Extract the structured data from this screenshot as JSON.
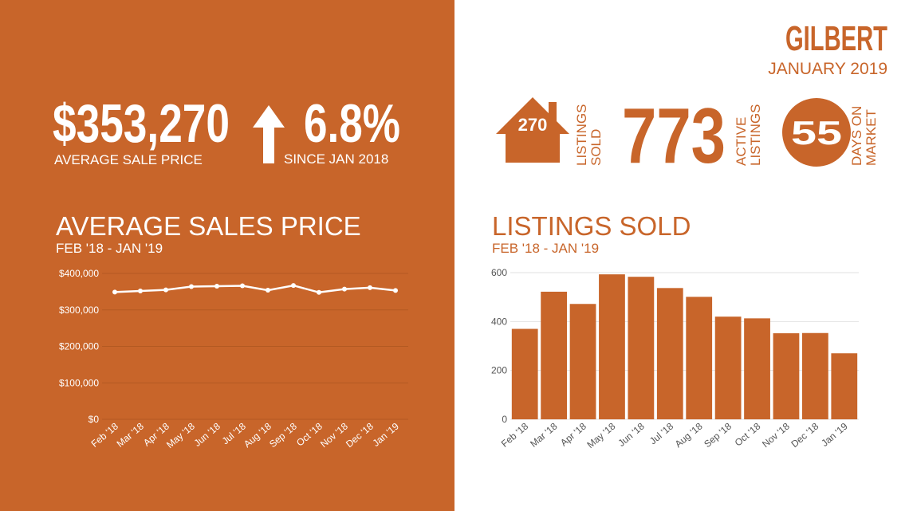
{
  "header": {
    "title": "GILBERT",
    "subtitle": "JANUARY 2019"
  },
  "summary": {
    "price": "$353,270",
    "price_label": "AVERAGE  SALE PRICE",
    "change": "6.8%",
    "change_label": "SINCE JAN 2018"
  },
  "stats": [
    {
      "value": "270",
      "label": [
        "LISTINGS",
        "SOLD"
      ]
    },
    {
      "value": "773",
      "label": [
        "ACTIVE",
        "LISTINGS"
      ]
    },
    {
      "value": "55",
      "label": [
        "DAYS ON",
        "MARKET"
      ]
    }
  ],
  "chart_data": [
    {
      "type": "line",
      "title": "AVERAGE SALES PRICE",
      "subtitle": "FEB '18 - JAN '19",
      "categories": [
        "Feb '18",
        "Mar '18",
        "Apr '18",
        "May '18",
        "Jun '18",
        "Jul '18",
        "Aug '18",
        "Sep '18",
        "Oct '18",
        "Nov '18",
        "Dec '18",
        "Jan '19"
      ],
      "values": [
        349000,
        352000,
        355000,
        364000,
        365000,
        366000,
        354000,
        367000,
        348000,
        357000,
        361000,
        353270
      ],
      "color": "#ffffff",
      "ylim": [
        0,
        400000
      ],
      "yticks": [
        {
          "value": 0,
          "label": "$0"
        },
        {
          "value": 100000,
          "label": "$100,000"
        },
        {
          "value": 200000,
          "label": "$200,000"
        },
        {
          "value": 300000,
          "label": "$300,000"
        },
        {
          "value": 400000,
          "label": "$400,000"
        }
      ],
      "grid": true
    },
    {
      "type": "bar",
      "title": "LISTINGS SOLD",
      "subtitle": "FEB '18 - JAN '19",
      "categories": [
        "Feb '18",
        "Mar '18",
        "Apr '18",
        "May '18",
        "Jun '18",
        "Jul '18",
        "Aug '18",
        "Sep '18",
        "Oct '18",
        "Nov '18",
        "Dec '18",
        "Jan '19"
      ],
      "values": [
        370,
        522,
        472,
        593,
        583,
        537,
        501,
        420,
        413,
        352,
        353,
        270
      ],
      "color": "#c8652a",
      "ylim": [
        0,
        600
      ],
      "yticks": [
        0,
        200,
        400,
        600
      ],
      "grid": true
    }
  ]
}
